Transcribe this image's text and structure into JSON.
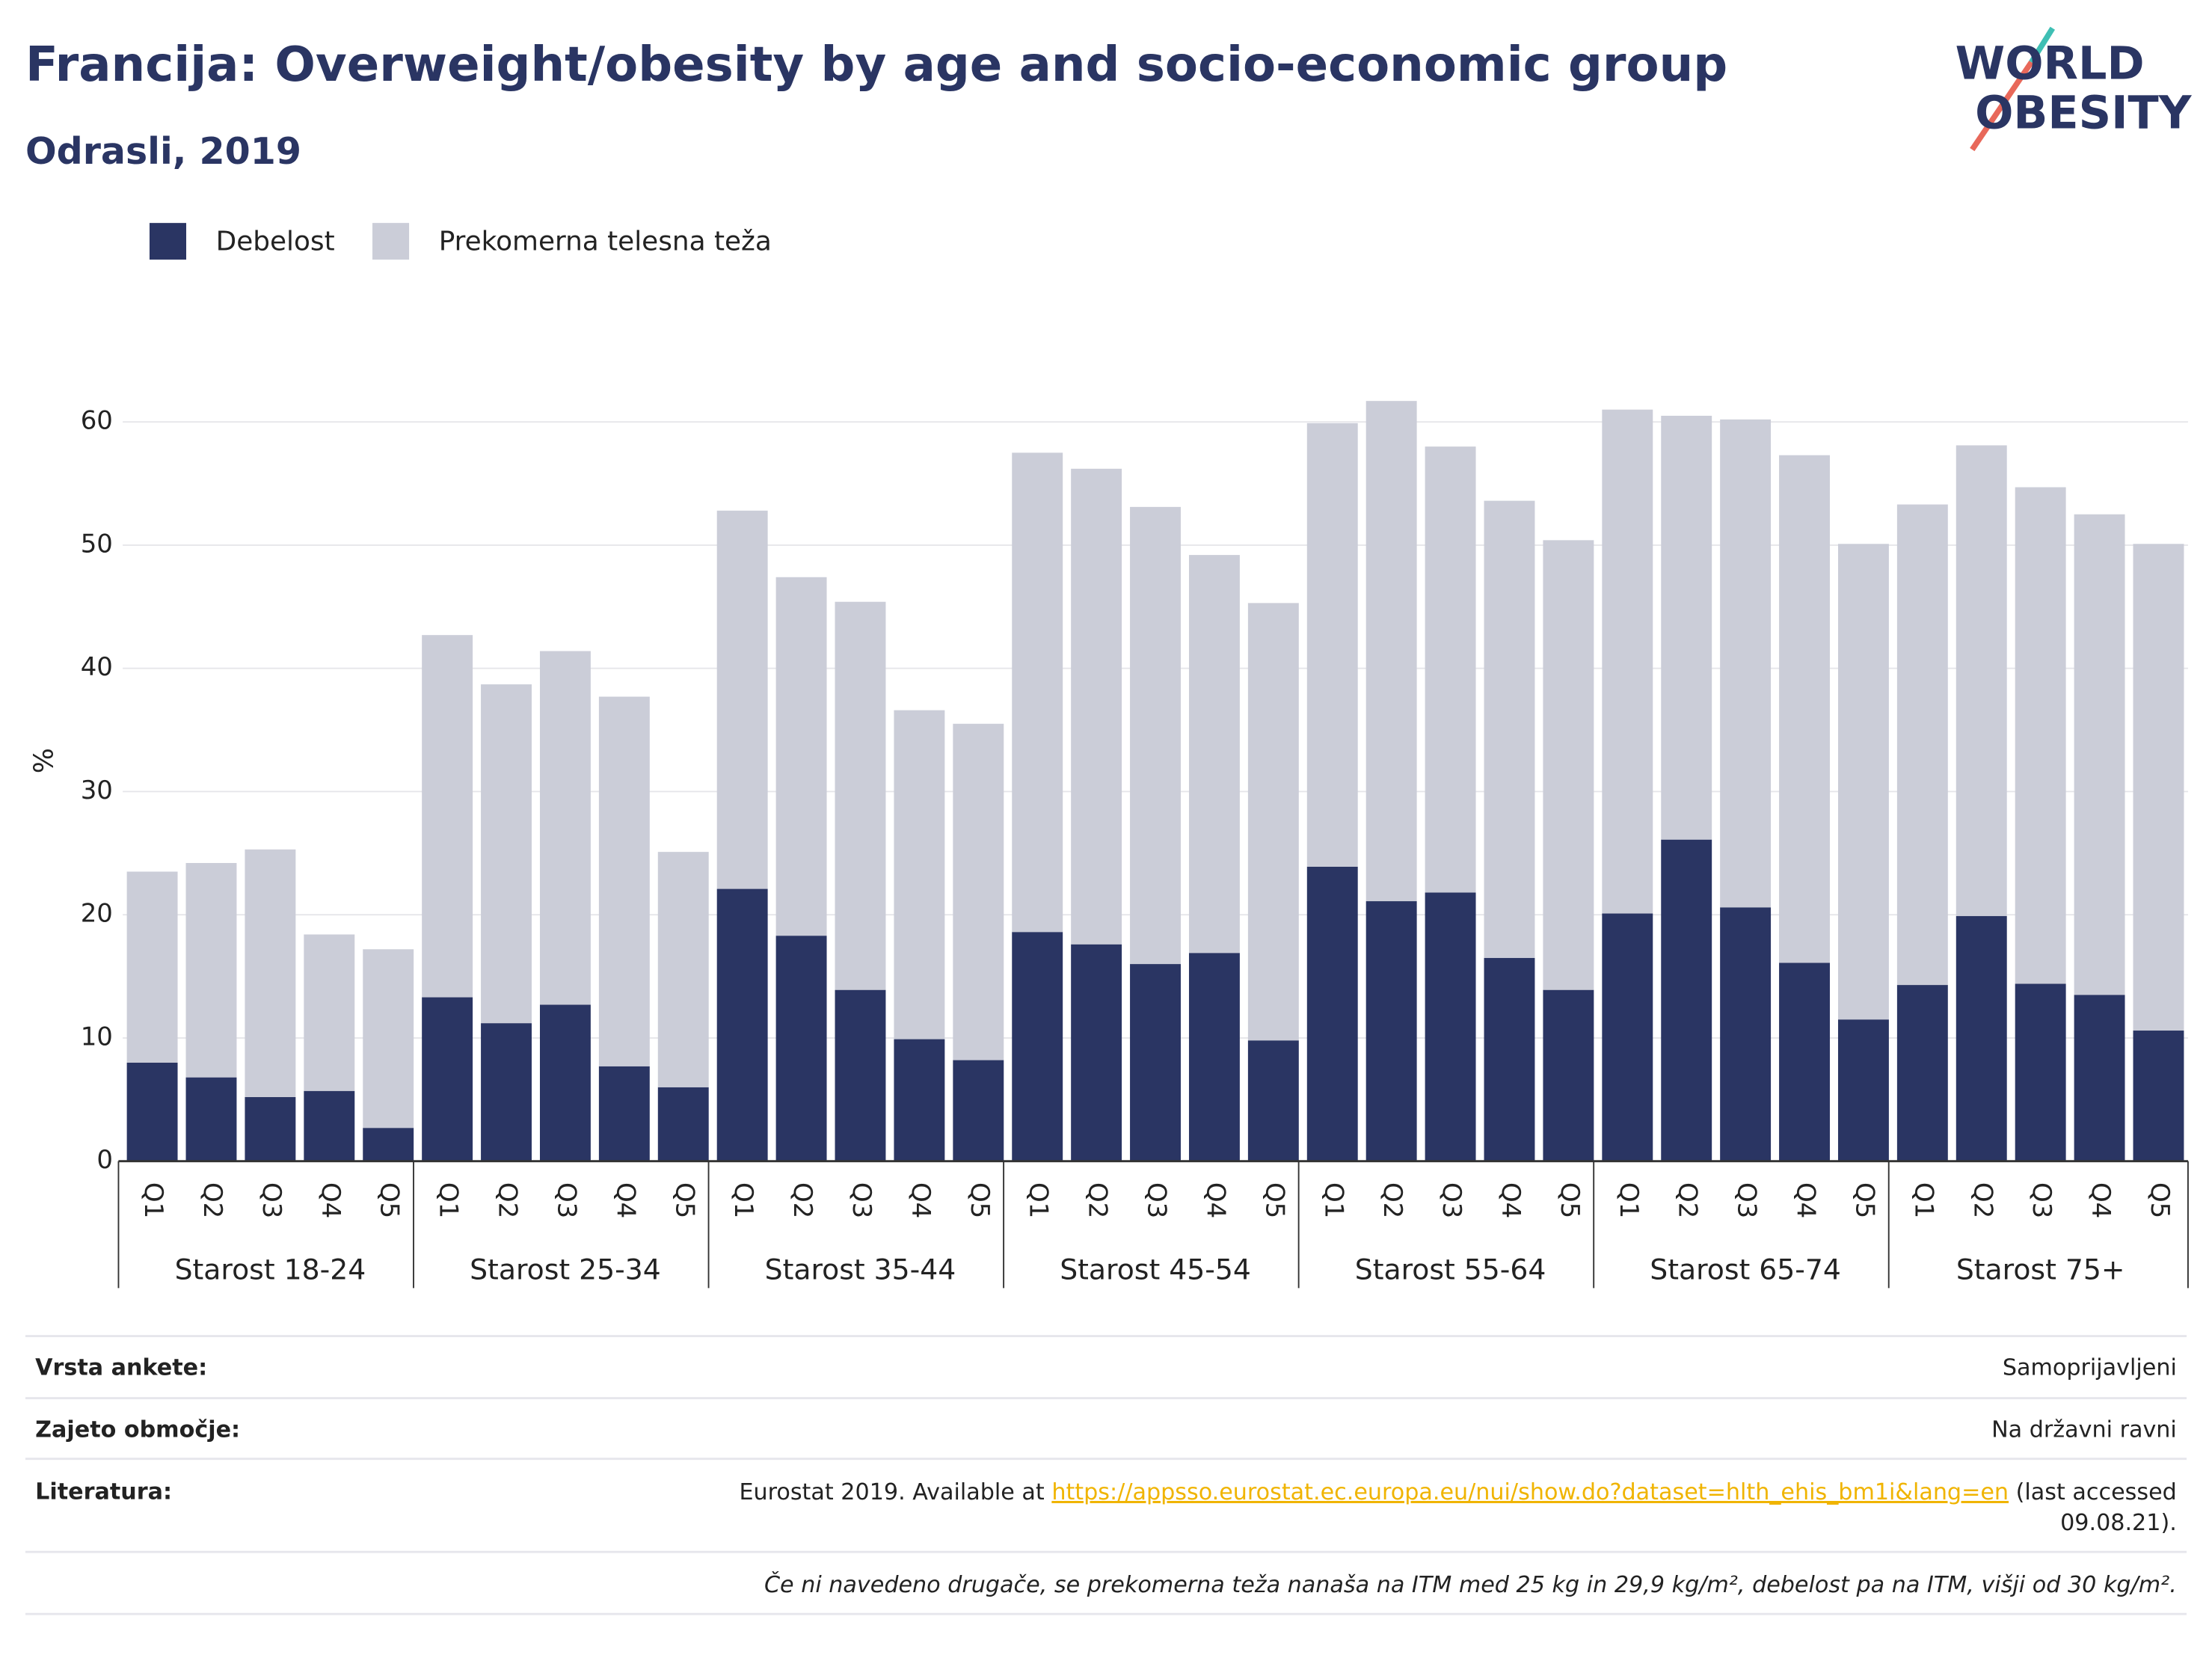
{
  "chart_data": {
    "type": "stacked_bar",
    "title": "Francija: Overweight/obesity by age and socio-economic group",
    "subtitle": "Odrasli, 2019",
    "y_label": "%",
    "logo": [
      "WORLD",
      "OBESITY"
    ],
    "groups": [
      "Starost 18-24",
      "Starost 25-34",
      "Starost 35-44",
      "Starost 45-54",
      "Starost 55-64",
      "Starost 65-74",
      "Starost 75+"
    ],
    "categories": [
      "Q1",
      "Q2",
      "Q3",
      "Q4",
      "Q5",
      "Q1",
      "Q2",
      "Q3",
      "Q4",
      "Q5",
      "Q1",
      "Q2",
      "Q3",
      "Q4",
      "Q5",
      "Q1",
      "Q2",
      "Q3",
      "Q4",
      "Q5",
      "Q1",
      "Q2",
      "Q3",
      "Q4",
      "Q5",
      "Q1",
      "Q2",
      "Q3",
      "Q4",
      "Q5",
      "Q1",
      "Q2",
      "Q3",
      "Q4",
      "Q5"
    ],
    "series": [
      {
        "name": "Debelost",
        "color": "#2a3563",
        "values": [
          8.0,
          6.8,
          5.2,
          5.7,
          2.7,
          13.3,
          11.2,
          12.7,
          7.7,
          6.0,
          22.1,
          18.3,
          13.9,
          9.9,
          8.2,
          18.6,
          17.6,
          16.0,
          16.9,
          9.8,
          23.9,
          21.1,
          21.8,
          16.5,
          13.9,
          20.1,
          26.1,
          20.6,
          16.1,
          11.5,
          14.3,
          19.9,
          14.4,
          13.5,
          10.6
        ]
      },
      {
        "name": "Prekomerna telesna teža",
        "color": "#cbcdd8",
        "values": [
          15.5,
          17.4,
          20.1,
          12.7,
          14.5,
          29.4,
          27.5,
          28.7,
          30.0,
          19.1,
          30.7,
          29.1,
          31.5,
          26.7,
          27.3,
          38.9,
          38.6,
          37.1,
          32.3,
          35.5,
          36.0,
          40.6,
          36.2,
          37.1,
          36.5,
          40.9,
          34.4,
          39.6,
          41.2,
          38.6,
          39.0,
          38.2,
          40.3,
          39.0,
          39.5
        ]
      }
    ],
    "ylim": [
      0,
      65
    ],
    "yticks": [
      0,
      10,
      20,
      30,
      40,
      50,
      60
    ],
    "grid": true,
    "legend": "top-left"
  },
  "footer": {
    "rows": [
      {
        "label": "Vrsta ankete:",
        "value": "Samoprijavljeni"
      },
      {
        "label": "Zajeto območje:",
        "value": "Na državni ravni"
      }
    ],
    "literature": {
      "label": "Literatura:",
      "prefix": "Eurostat 2019. Available at ",
      "link": "https://appsso.eurostat.ec.europa.eu/nui/show.do?dataset=hlth_ehis_bm1i&lang=en",
      "after": [
        " (last accessed",
        "09.08.21)."
      ]
    },
    "note": "Če ni navedeno drugače, se prekomerna teža nanaša na ITM med 25 kg in 29,9 kg/m², debelost pa na ITM, višji od 30 kg/m²."
  }
}
